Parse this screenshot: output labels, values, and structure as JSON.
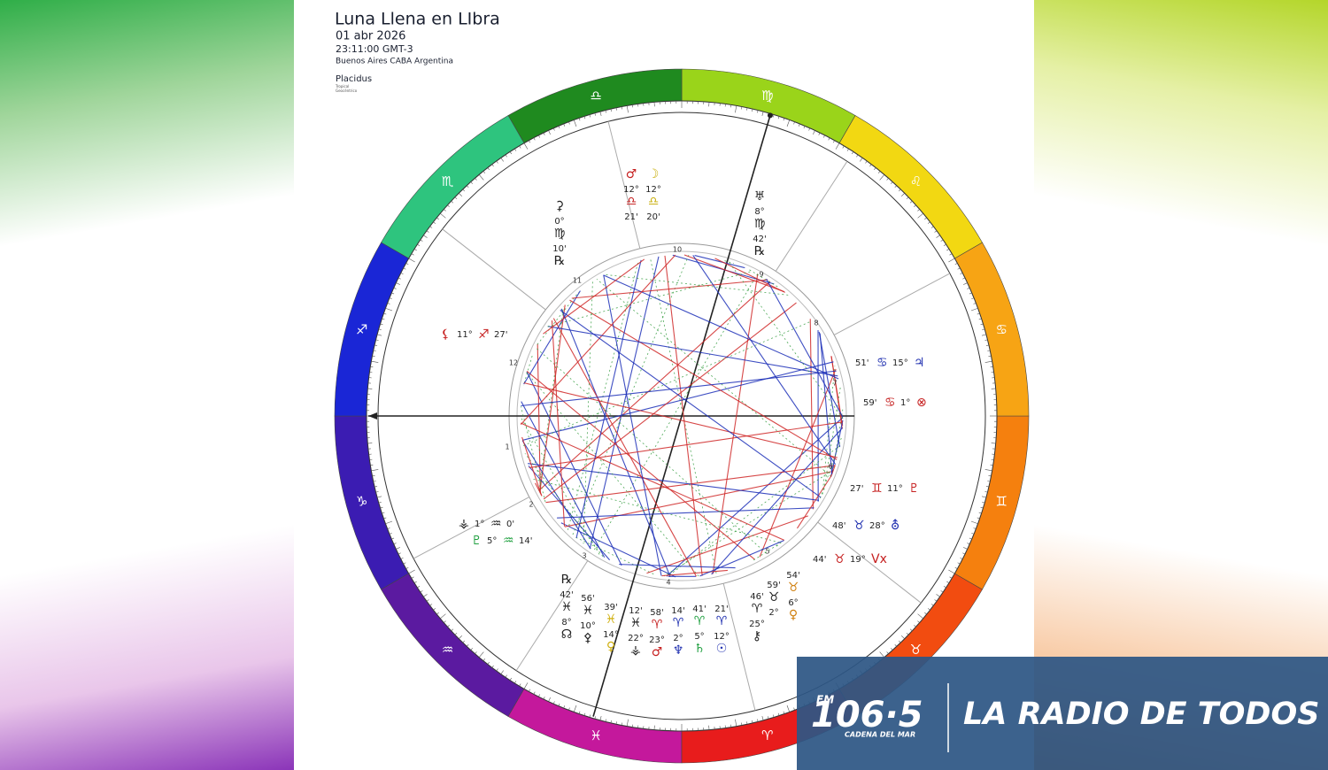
{
  "header": {
    "title": "Luna Llena en LIbra",
    "date": "01 abr 2026",
    "time": "23:11:00 GMT-3",
    "location": "Buenos Aires CABA Argentina",
    "house_system": "Placidus",
    "zodiac": "Tropical",
    "view": "Geocéntrico"
  },
  "zodiac_signs": [
    {
      "glyph": "♑",
      "color": "#3b1cb2"
    },
    {
      "glyph": "♒",
      "color": "#5b1aa0"
    },
    {
      "glyph": "♓",
      "color": "#c4189c"
    },
    {
      "glyph": "♈",
      "color": "#e81c1c"
    },
    {
      "glyph": "♉",
      "color": "#f24c10"
    },
    {
      "glyph": "♊",
      "color": "#f5800e"
    },
    {
      "glyph": "♋",
      "color": "#f7a414"
    },
    {
      "glyph": "♌",
      "color": "#f2d812"
    },
    {
      "glyph": "♍",
      "color": "#9ad41a"
    },
    {
      "glyph": "♎",
      "color": "#1f8a1f"
    },
    {
      "glyph": "♏",
      "color": "#2ec47e"
    },
    {
      "glyph": "♐",
      "color": "#1a26d6"
    }
  ],
  "house_numbers": [
    "1",
    "2",
    "3",
    "4",
    "5",
    "6",
    "7",
    "8",
    "9",
    "10",
    "11",
    "12"
  ],
  "placements": [
    {
      "parts": [
        "♂",
        "12°",
        "♎",
        "21'"
      ],
      "color": "#c62020"
    },
    {
      "parts": [
        "☽",
        "12°",
        "♎",
        "20'"
      ],
      "color": "#c9b010"
    },
    {
      "parts": [
        "♅",
        "8°",
        "♍",
        "42'",
        "℞"
      ],
      "color": "#222222"
    },
    {
      "parts": [
        "⚳",
        "0°",
        "♍",
        "10'",
        "℞"
      ],
      "color": "#222222"
    },
    {
      "parts": [
        "⚸",
        "11°",
        "♐",
        "27'"
      ],
      "color": "#c62020"
    },
    {
      "parts": [
        "51'",
        "♋",
        "15°",
        "♃"
      ],
      "color": "#2030b0"
    },
    {
      "parts": [
        "59'",
        "♋",
        "1°",
        "⊗"
      ],
      "color": "#c62020"
    },
    {
      "parts": [
        "27'",
        "♊",
        "11°",
        "♇"
      ],
      "color": "#c62020"
    },
    {
      "parts": [
        "48'",
        "♉",
        "28°",
        "⛢"
      ],
      "color": "#2030b0"
    },
    {
      "parts": [
        "44'",
        "♉",
        "19°",
        "Vx"
      ],
      "color": "#c62020"
    },
    {
      "parts": [
        "⚶",
        "1°",
        "♒",
        "0'"
      ],
      "color": "#222222"
    },
    {
      "parts": [
        "♇",
        "5°",
        "♒",
        "14'"
      ],
      "color": "#20a040"
    },
    {
      "parts": [
        "℞",
        "42'",
        "♓",
        "8°",
        "☊"
      ],
      "color": "#222222"
    },
    {
      "parts": [
        "56'",
        "♓",
        "10°",
        "⚴"
      ],
      "color": "#222222"
    },
    {
      "parts": [
        "39'",
        "♓",
        "14°",
        "♀"
      ],
      "color": "#d0b010"
    },
    {
      "parts": [
        "12'",
        "♓",
        "22°",
        "⚶"
      ],
      "color": "#222222"
    },
    {
      "parts": [
        "58'",
        "♈",
        "23°",
        "♂"
      ],
      "color": "#c62020"
    },
    {
      "parts": [
        "14'",
        "♈",
        "2°",
        "♆"
      ],
      "color": "#2030b0"
    },
    {
      "parts": [
        "41'",
        "♈",
        "5°",
        "♄"
      ],
      "color": "#20a040"
    },
    {
      "parts": [
        "21'",
        "♈",
        "12°",
        "☉"
      ],
      "color": "#2030b0"
    },
    {
      "parts": [
        "46'",
        "♈",
        "25°",
        "⚷"
      ],
      "color": "#222222"
    },
    {
      "parts": [
        "59'",
        "♉",
        "2°"
      ],
      "color": "#222222"
    },
    {
      "parts": [
        "54'",
        "♉",
        "6°",
        "♀"
      ],
      "color": "#d08010"
    }
  ],
  "banner": {
    "fm": "FM",
    "frequency": "106·5",
    "network": "CADENA DEL MAR",
    "slogan": "LA RADIO DE TODOS"
  }
}
